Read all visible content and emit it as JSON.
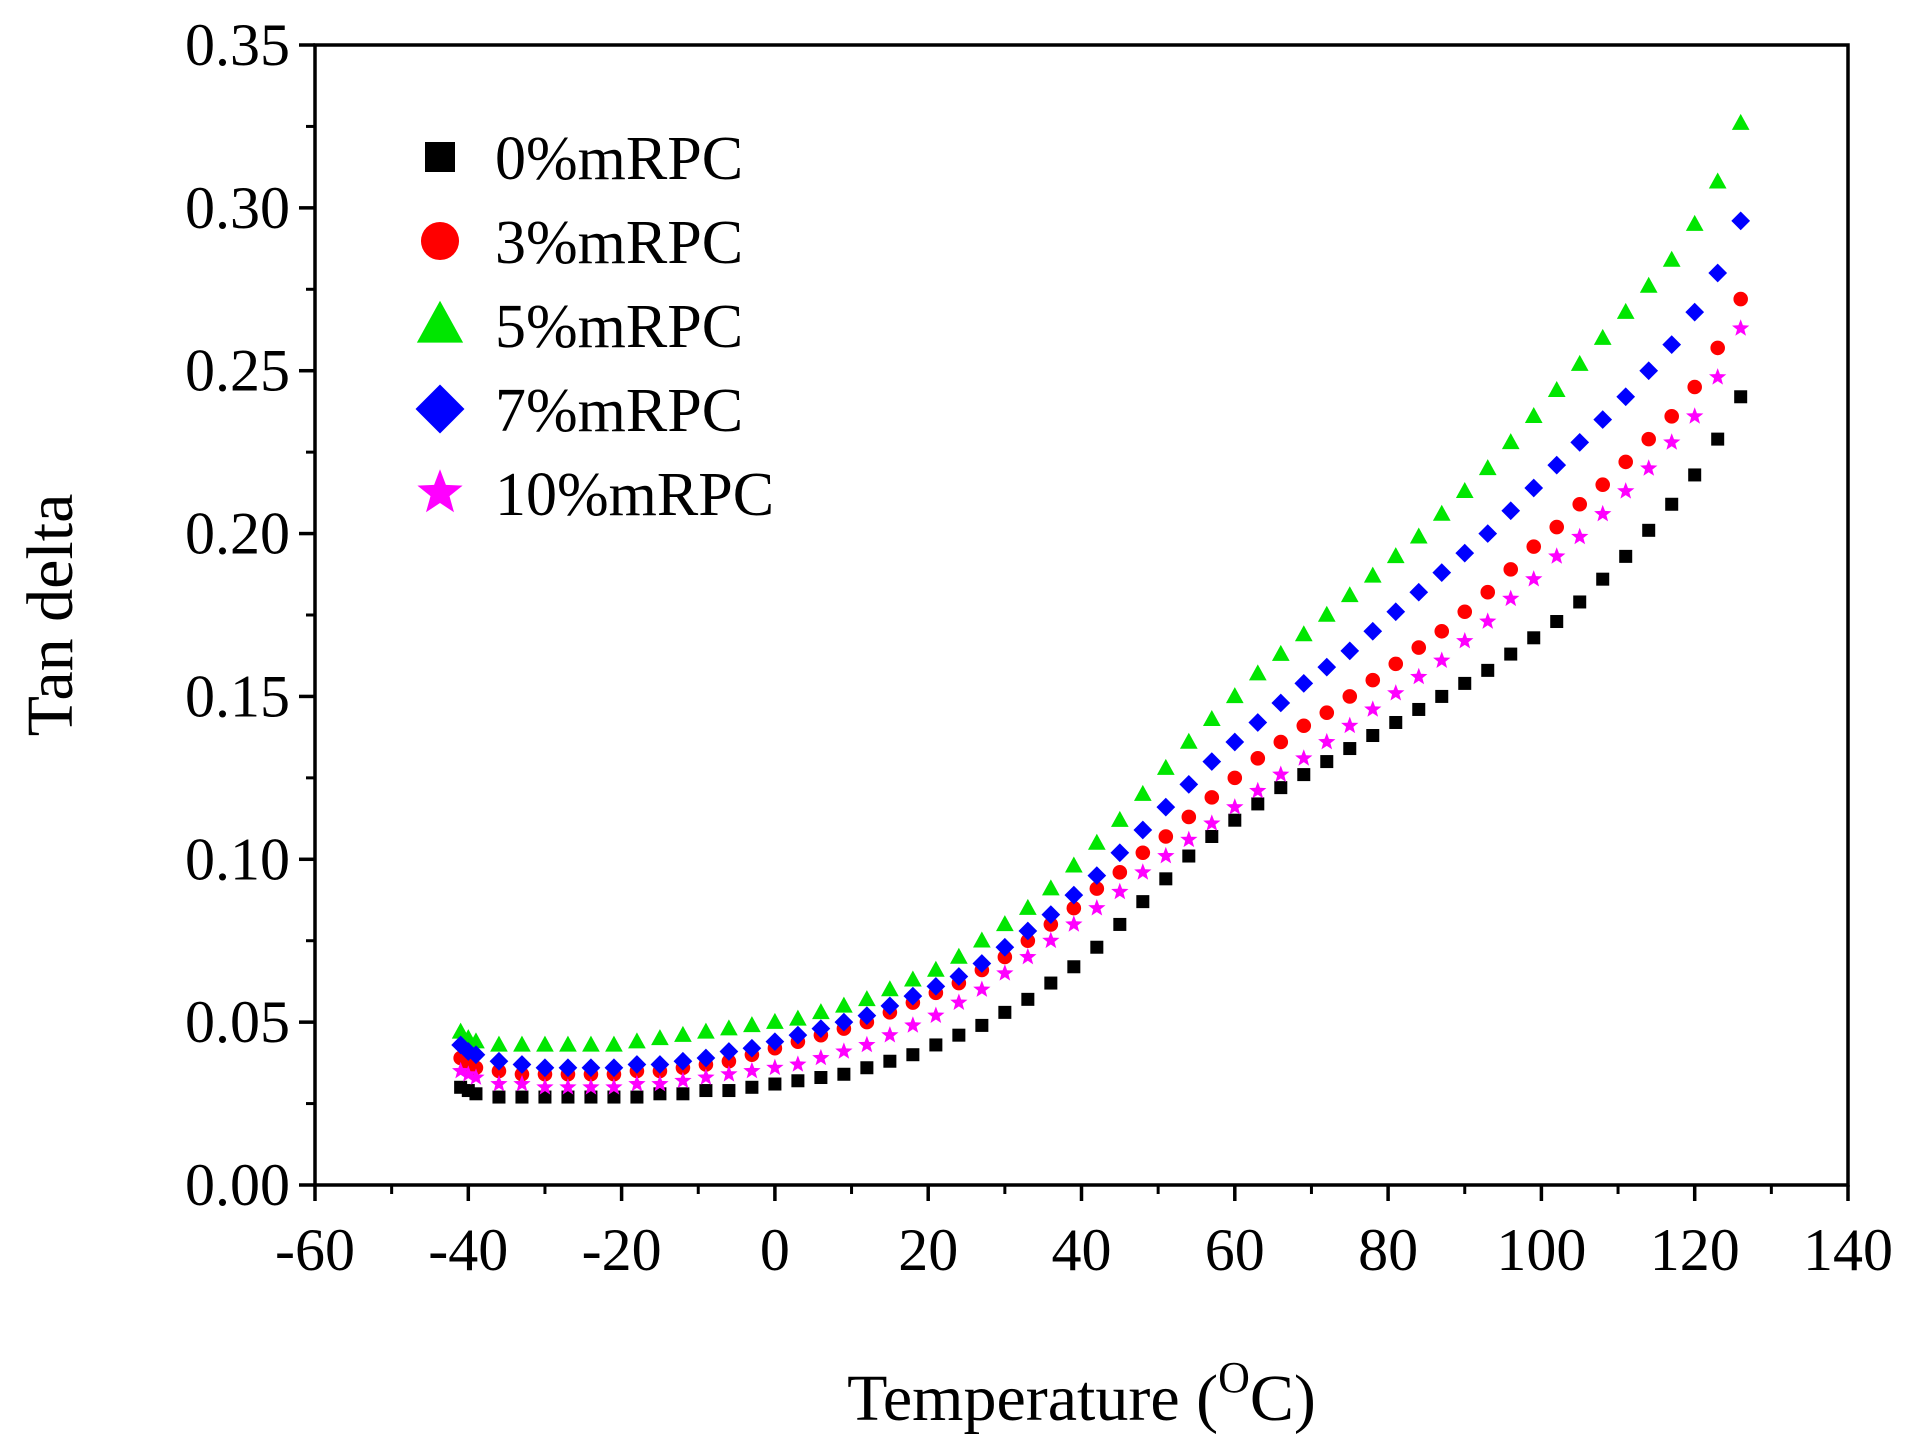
{
  "chart_data": {
    "type": "scatter",
    "title": "",
    "xlabel": "Temperature (",
    "xlabel_sup": "O",
    "xlabel_unit": "C)",
    "ylabel": "Tan delta",
    "xlim": [
      -60,
      140
    ],
    "ylim": [
      0.0,
      0.35
    ],
    "xticks": [
      "-60",
      "-40",
      "-20",
      "0",
      "20",
      "40",
      "60",
      "80",
      "100",
      "120",
      "140"
    ],
    "yticks": [
      "0.00",
      "0.05",
      "0.10",
      "0.15",
      "0.20",
      "0.25",
      "0.30",
      "0.35"
    ],
    "legend_position": "top-left",
    "x": [
      -41,
      -40,
      -39,
      -36,
      -33,
      -30,
      -27,
      -24,
      -21,
      -18,
      -15,
      -12,
      -9,
      -6,
      -3,
      0,
      3,
      6,
      9,
      12,
      15,
      18,
      21,
      24,
      27,
      30,
      33,
      36,
      39,
      42,
      45,
      48,
      51,
      54,
      57,
      60,
      63,
      66,
      69,
      72,
      75,
      78,
      81,
      84,
      87,
      90,
      93,
      96,
      99,
      102,
      105,
      108,
      111,
      114,
      117,
      120,
      123,
      126
    ],
    "series": [
      {
        "name": "0%mRPC",
        "marker": "square",
        "color": "#000000",
        "values": [
          0.03,
          0.029,
          0.028,
          0.027,
          0.027,
          0.027,
          0.027,
          0.027,
          0.027,
          0.027,
          0.028,
          0.028,
          0.029,
          0.029,
          0.03,
          0.031,
          0.032,
          0.033,
          0.034,
          0.036,
          0.038,
          0.04,
          0.043,
          0.046,
          0.049,
          0.053,
          0.057,
          0.062,
          0.067,
          0.073,
          0.08,
          0.087,
          0.094,
          0.101,
          0.107,
          0.112,
          0.117,
          0.122,
          0.126,
          0.13,
          0.134,
          0.138,
          0.142,
          0.146,
          0.15,
          0.154,
          0.158,
          0.163,
          0.168,
          0.173,
          0.179,
          0.186,
          0.193,
          0.201,
          0.209,
          0.218,
          0.229,
          0.242
        ]
      },
      {
        "name": "3%mRPC",
        "marker": "circle",
        "color": "#ff0000",
        "values": [
          0.039,
          0.037,
          0.036,
          0.035,
          0.034,
          0.034,
          0.034,
          0.034,
          0.034,
          0.035,
          0.035,
          0.036,
          0.037,
          0.038,
          0.04,
          0.042,
          0.044,
          0.046,
          0.048,
          0.05,
          0.053,
          0.056,
          0.059,
          0.062,
          0.066,
          0.07,
          0.075,
          0.08,
          0.085,
          0.091,
          0.096,
          0.102,
          0.107,
          0.113,
          0.119,
          0.125,
          0.131,
          0.136,
          0.141,
          0.145,
          0.15,
          0.155,
          0.16,
          0.165,
          0.17,
          0.176,
          0.182,
          0.189,
          0.196,
          0.202,
          0.209,
          0.215,
          0.222,
          0.229,
          0.236,
          0.245,
          0.257,
          0.272
        ]
      },
      {
        "name": "5%mRPC",
        "marker": "triangle",
        "color": "#00e600",
        "values": [
          0.047,
          0.045,
          0.044,
          0.043,
          0.043,
          0.043,
          0.043,
          0.043,
          0.043,
          0.044,
          0.045,
          0.046,
          0.047,
          0.048,
          0.049,
          0.05,
          0.051,
          0.053,
          0.055,
          0.057,
          0.06,
          0.063,
          0.066,
          0.07,
          0.075,
          0.08,
          0.085,
          0.091,
          0.098,
          0.105,
          0.112,
          0.12,
          0.128,
          0.136,
          0.143,
          0.15,
          0.157,
          0.163,
          0.169,
          0.175,
          0.181,
          0.187,
          0.193,
          0.199,
          0.206,
          0.213,
          0.22,
          0.228,
          0.236,
          0.244,
          0.252,
          0.26,
          0.268,
          0.276,
          0.284,
          0.295,
          0.308,
          0.326
        ]
      },
      {
        "name": "7%mRPC",
        "marker": "diamond",
        "color": "#0000ff",
        "values": [
          0.043,
          0.041,
          0.04,
          0.038,
          0.037,
          0.036,
          0.036,
          0.036,
          0.036,
          0.037,
          0.037,
          0.038,
          0.039,
          0.041,
          0.042,
          0.044,
          0.046,
          0.048,
          0.05,
          0.052,
          0.055,
          0.058,
          0.061,
          0.064,
          0.068,
          0.073,
          0.078,
          0.083,
          0.089,
          0.095,
          0.102,
          0.109,
          0.116,
          0.123,
          0.13,
          0.136,
          0.142,
          0.148,
          0.154,
          0.159,
          0.164,
          0.17,
          0.176,
          0.182,
          0.188,
          0.194,
          0.2,
          0.207,
          0.214,
          0.221,
          0.228,
          0.235,
          0.242,
          0.25,
          0.258,
          0.268,
          0.28,
          0.296
        ]
      },
      {
        "name": "10%mRPC",
        "marker": "star",
        "color": "#ff00ff",
        "values": [
          0.035,
          0.034,
          0.033,
          0.031,
          0.031,
          0.03,
          0.03,
          0.03,
          0.03,
          0.031,
          0.031,
          0.032,
          0.033,
          0.034,
          0.035,
          0.036,
          0.037,
          0.039,
          0.041,
          0.043,
          0.046,
          0.049,
          0.052,
          0.056,
          0.06,
          0.065,
          0.07,
          0.075,
          0.08,
          0.085,
          0.09,
          0.096,
          0.101,
          0.106,
          0.111,
          0.116,
          0.121,
          0.126,
          0.131,
          0.136,
          0.141,
          0.146,
          0.151,
          0.156,
          0.161,
          0.167,
          0.173,
          0.18,
          0.186,
          0.193,
          0.199,
          0.206,
          0.213,
          0.22,
          0.228,
          0.236,
          0.248,
          0.263
        ]
      }
    ]
  }
}
